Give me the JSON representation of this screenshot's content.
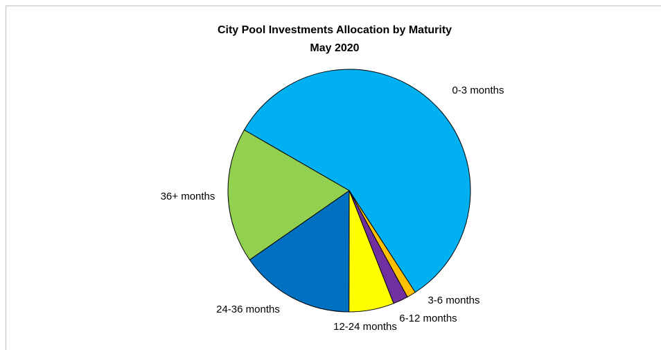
{
  "chart_data": {
    "type": "pie",
    "title": "City Pool  Investments Allocation  by Maturity",
    "subtitle": "May 2020",
    "categories": [
      "0-3 months",
      "3-6 months",
      "6-12 months",
      "12-24 months",
      "24-36 months",
      "36+ months"
    ],
    "values": [
      57.5,
      1.2,
      2,
      6,
      15.3,
      18
    ],
    "colors": [
      "#00b0f0",
      "#ffc000",
      "#7030a0",
      "#ffff00",
      "#0070c0",
      "#92d050"
    ]
  }
}
